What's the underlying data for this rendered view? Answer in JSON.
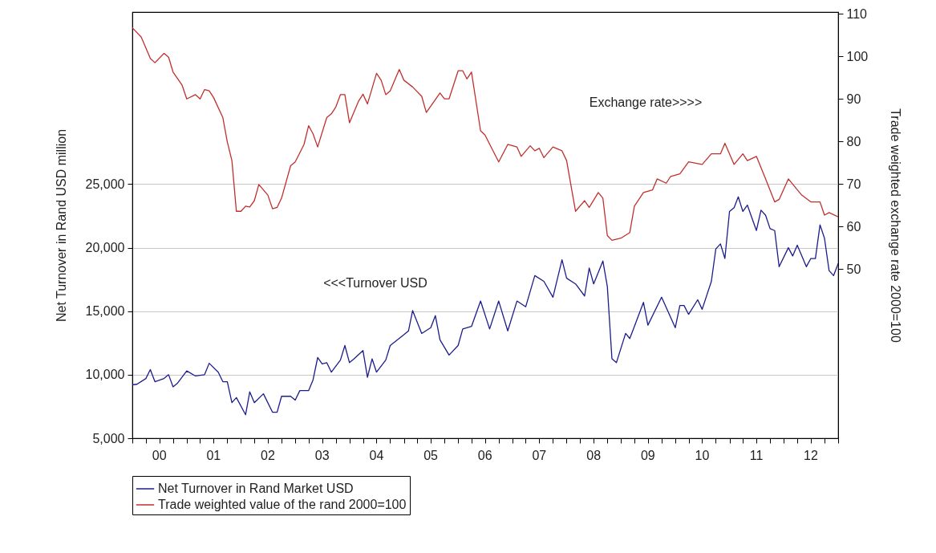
{
  "chart_data": {
    "type": "line",
    "ylabel": "Net Turnover in Rand USD million",
    "y2label": "Trade weighted exchange rate 2000=100",
    "annotations": [
      "Exchange rate>>>>",
      "<<<Turnover USD"
    ],
    "xlim": [
      "2000-01",
      "2013-01"
    ],
    "xticks": [
      {
        "value": "2000-01",
        "label": null
      },
      {
        "value": "2000-04",
        "label": null
      },
      {
        "value": "2000-07",
        "label": "00"
      },
      {
        "value": "2000-10",
        "label": null
      },
      {
        "value": "2001-01",
        "label": null
      },
      {
        "value": "2001-04",
        "label": null
      },
      {
        "value": "2001-07",
        "label": "01"
      },
      {
        "value": "2001-10",
        "label": null
      },
      {
        "value": "2002-01",
        "label": null
      },
      {
        "value": "2002-04",
        "label": null
      },
      {
        "value": "2002-07",
        "label": "02"
      },
      {
        "value": "2002-10",
        "label": null
      },
      {
        "value": "2003-01",
        "label": null
      },
      {
        "value": "2003-04",
        "label": null
      },
      {
        "value": "2003-07",
        "label": "03"
      },
      {
        "value": "2003-10",
        "label": null
      },
      {
        "value": "2004-01",
        "label": null
      },
      {
        "value": "2004-04",
        "label": null
      },
      {
        "value": "2004-07",
        "label": "04"
      },
      {
        "value": "2004-10",
        "label": null
      },
      {
        "value": "2005-01",
        "label": null
      },
      {
        "value": "2005-04",
        "label": null
      },
      {
        "value": "2005-07",
        "label": "05"
      },
      {
        "value": "2005-10",
        "label": null
      },
      {
        "value": "2006-01",
        "label": null
      },
      {
        "value": "2006-04",
        "label": null
      },
      {
        "value": "2006-07",
        "label": "06"
      },
      {
        "value": "2006-10",
        "label": null
      },
      {
        "value": "2007-01",
        "label": null
      },
      {
        "value": "2007-04",
        "label": null
      },
      {
        "value": "2007-07",
        "label": "07"
      },
      {
        "value": "2007-10",
        "label": null
      },
      {
        "value": "2008-01",
        "label": null
      },
      {
        "value": "2008-04",
        "label": null
      },
      {
        "value": "2008-07",
        "label": "08"
      },
      {
        "value": "2008-10",
        "label": null
      },
      {
        "value": "2009-01",
        "label": null
      },
      {
        "value": "2009-04",
        "label": null
      },
      {
        "value": "2009-07",
        "label": "09"
      },
      {
        "value": "2009-10",
        "label": null
      },
      {
        "value": "2010-01",
        "label": null
      },
      {
        "value": "2010-04",
        "label": null
      },
      {
        "value": "2010-07",
        "label": "10"
      },
      {
        "value": "2010-10",
        "label": null
      },
      {
        "value": "2011-01",
        "label": null
      },
      {
        "value": "2011-04",
        "label": null
      },
      {
        "value": "2011-07",
        "label": "11"
      },
      {
        "value": "2011-10",
        "label": null
      },
      {
        "value": "2012-01",
        "label": null
      },
      {
        "value": "2012-04",
        "label": null
      },
      {
        "value": "2012-07",
        "label": "12"
      },
      {
        "value": "2012-10",
        "label": null
      },
      {
        "value": "2013-01",
        "label": null
      }
    ],
    "ylim": [
      5000,
      38550
    ],
    "yticks": [
      {
        "value": 5000,
        "label": "5,000"
      },
      {
        "value": 10000,
        "label": "10,000"
      },
      {
        "value": 15000,
        "label": "15,000"
      },
      {
        "value": 20000,
        "label": "20,000"
      },
      {
        "value": 25000,
        "label": "25,000"
      }
    ],
    "y2lim": [
      10.3,
      110.4
    ],
    "y2ticks": [
      50,
      60,
      70,
      80,
      90,
      100,
      110
    ],
    "grid": "y",
    "legend": "bottom",
    "series": [
      {
        "name": "Net Turnover in Rand Market USD",
        "color": "#1c1c8c",
        "x": [
          "2000-01",
          "2000-02",
          "2000-04",
          "2000-05",
          "2000-06",
          "2000-08",
          "2000-09",
          "2000-10",
          "2000-11",
          "2001-01",
          "2001-03",
          "2001-05",
          "2001-06",
          "2001-08",
          "2001-09",
          "2001-10",
          "2001-11",
          "2001-12",
          "2002-02",
          "2002-03",
          "2002-04",
          "2002-06",
          "2002-08",
          "2002-09",
          "2002-10",
          "2002-12",
          "2003-01",
          "2003-02",
          "2003-04",
          "2003-05",
          "2003-06",
          "2003-07",
          "2003-08",
          "2003-09",
          "2003-11",
          "2003-12",
          "2004-01",
          "2004-02",
          "2004-04",
          "2004-05",
          "2004-06",
          "2004-07",
          "2004-09",
          "2004-10",
          "2005-01",
          "2005-02",
          "2005-03",
          "2005-05",
          "2005-07",
          "2005-08",
          "2005-09",
          "2005-11",
          "2006-01",
          "2006-02",
          "2006-04",
          "2006-06",
          "2006-08",
          "2006-10",
          "2006-12",
          "2007-02",
          "2007-04",
          "2007-06",
          "2007-08",
          "2007-10",
          "2007-12",
          "2008-01",
          "2008-03",
          "2008-05",
          "2008-06",
          "2008-07",
          "2008-09",
          "2008-10",
          "2008-11",
          "2008-12",
          "2009-01",
          "2009-02",
          "2009-03",
          "2009-04",
          "2009-06",
          "2009-07",
          "2009-10",
          "2010-01",
          "2010-02",
          "2010-03",
          "2010-04",
          "2010-06",
          "2010-07",
          "2010-09",
          "2010-10",
          "2010-11",
          "2010-12",
          "2011-01",
          "2011-02",
          "2011-03",
          "2011-04",
          "2011-05",
          "2011-07",
          "2011-08",
          "2011-09",
          "2011-10",
          "2011-11",
          "2011-12",
          "2012-02",
          "2012-03",
          "2012-04",
          "2012-06",
          "2012-07",
          "2012-08",
          "2012-09",
          "2012-10",
          "2012-11",
          "2012-12",
          "2013-01"
        ],
        "values": [
          9200,
          9250,
          9700,
          10400,
          9450,
          9700,
          10000,
          9050,
          9350,
          10300,
          9900,
          10000,
          10900,
          10200,
          9450,
          9450,
          7800,
          8200,
          6850,
          8650,
          7800,
          8500,
          7050,
          7050,
          8300,
          8300,
          8000,
          8750,
          8750,
          9600,
          11350,
          10850,
          10950,
          10200,
          11150,
          12300,
          10950,
          11250,
          11900,
          9800,
          11250,
          10200,
          11150,
          12300,
          13150,
          13450,
          15050,
          13250,
          13700,
          14650,
          12750,
          11550,
          12300,
          13600,
          13800,
          15800,
          13600,
          15800,
          13450,
          15800,
          15350,
          17800,
          17350,
          16100,
          19050,
          17600,
          17150,
          16200,
          18400,
          17150,
          18950,
          16950,
          11250,
          10950,
          12100,
          13250,
          12850,
          13800,
          15700,
          13900,
          16100,
          13700,
          15450,
          15450,
          14750,
          15900,
          15150,
          17350,
          19900,
          20300,
          19150,
          22850,
          23150,
          24000,
          22850,
          23350,
          21350,
          22950,
          22550,
          21500,
          21350,
          18500,
          20000,
          19350,
          20200,
          18500,
          19150,
          19150,
          21800,
          20750,
          18200,
          17800,
          18750
        ]
      },
      {
        "name": "Trade weighted value of the rand 2000=100",
        "color": "#c0302e",
        "axis": "y2",
        "x": [
          "2000-01",
          "2000-03",
          "2000-05",
          "2000-06",
          "2000-08",
          "2000-09",
          "2000-10",
          "2000-12",
          "2001-01",
          "2001-03",
          "2001-04",
          "2001-05",
          "2001-06",
          "2001-07",
          "2001-09",
          "2001-10",
          "2001-11",
          "2001-12",
          "2002-01",
          "2002-02",
          "2002-03",
          "2002-04",
          "2002-05",
          "2002-07",
          "2002-08",
          "2002-09",
          "2002-10",
          "2002-12",
          "2003-01",
          "2003-03",
          "2003-04",
          "2003-05",
          "2003-06",
          "2003-08",
          "2003-09",
          "2003-10",
          "2003-11",
          "2003-12",
          "2004-01",
          "2004-03",
          "2004-04",
          "2004-05",
          "2004-07",
          "2004-08",
          "2004-09",
          "2004-10",
          "2004-12",
          "2005-01",
          "2005-03",
          "2005-05",
          "2005-06",
          "2005-09",
          "2005-10",
          "2005-11",
          "2006-01",
          "2006-02",
          "2006-03",
          "2006-04",
          "2006-06",
          "2006-07",
          "2006-10",
          "2006-12",
          "2007-02",
          "2007-03",
          "2007-05",
          "2007-06",
          "2007-07",
          "2007-08",
          "2007-10",
          "2007-12",
          "2008-01",
          "2008-03",
          "2008-05",
          "2008-06",
          "2008-08",
          "2008-09",
          "2008-10",
          "2008-11",
          "2009-01",
          "2009-03",
          "2009-04",
          "2009-06",
          "2009-08",
          "2009-09",
          "2009-11",
          "2009-12",
          "2010-02",
          "2010-04",
          "2010-07",
          "2010-09",
          "2010-11",
          "2010-12",
          "2011-02",
          "2011-04",
          "2011-05",
          "2011-07",
          "2011-09",
          "2011-11",
          "2011-12",
          "2012-02",
          "2012-05",
          "2012-07",
          "2012-09",
          "2012-10",
          "2012-11",
          "2013-01"
        ],
        "values": [
          106.7,
          104.5,
          99.5,
          98.5,
          100.7,
          99.8,
          96.3,
          93.2,
          90.0,
          91.0,
          90.0,
          92.2,
          91.9,
          90.3,
          85.6,
          79.9,
          75.5,
          63.6,
          63.6,
          64.8,
          64.6,
          66.1,
          69.9,
          67.4,
          64.2,
          64.5,
          66.7,
          74.3,
          75.2,
          79.3,
          83.7,
          81.8,
          78.7,
          85.6,
          86.5,
          88.1,
          91.0,
          91.0,
          84.4,
          89.4,
          91.1,
          88.8,
          96.0,
          94.4,
          91.0,
          91.9,
          96.9,
          94.4,
          92.8,
          90.6,
          86.8,
          91.4,
          90.0,
          90.0,
          96.6,
          96.6,
          94.7,
          96.3,
          82.5,
          81.5,
          75.2,
          79.3,
          78.7,
          76.5,
          79.0,
          77.8,
          78.4,
          76.2,
          78.7,
          77.8,
          75.5,
          63.6,
          66.1,
          64.5,
          68.0,
          66.7,
          57.9,
          56.8,
          57.3,
          58.6,
          64.8,
          68.0,
          68.6,
          71.2,
          70.2,
          71.8,
          72.4,
          75.2,
          74.6,
          77.1,
          77.1,
          79.6,
          74.6,
          77.1,
          75.5,
          76.5,
          71.2,
          65.8,
          66.4,
          71.2,
          67.4,
          65.8,
          65.8,
          62.7,
          63.3,
          62.3
        ]
      }
    ]
  }
}
